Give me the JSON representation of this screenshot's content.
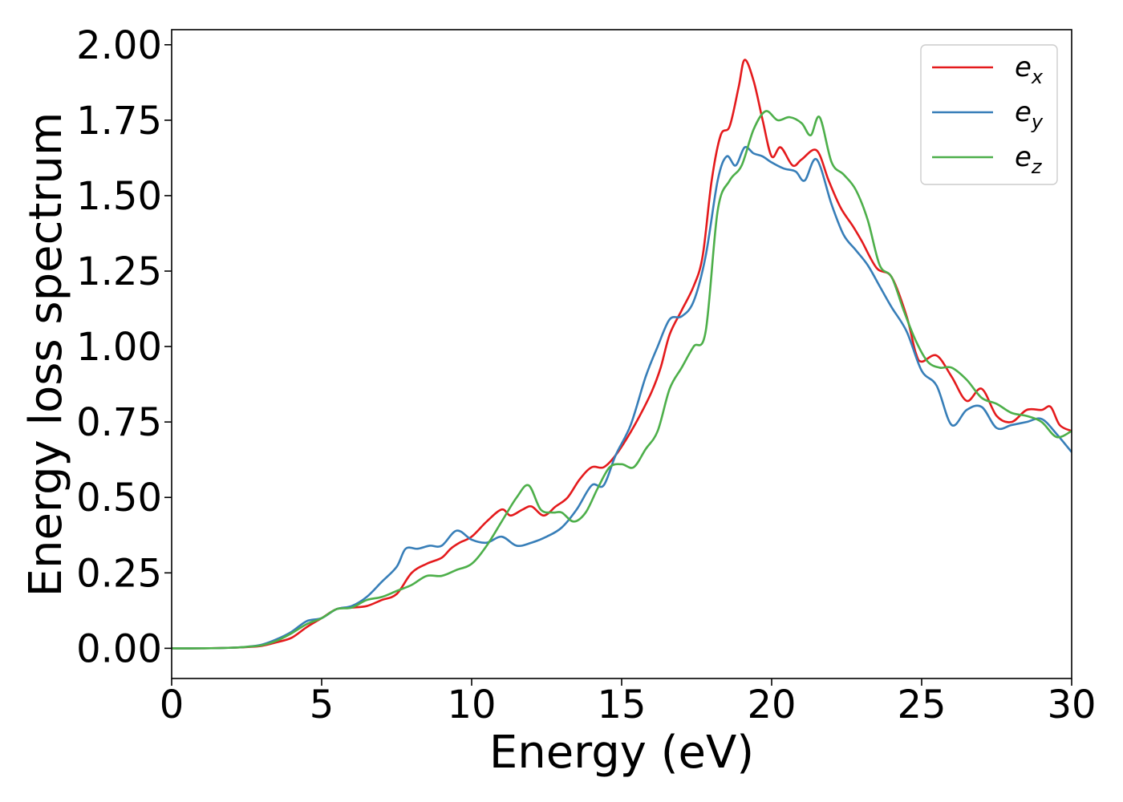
{
  "chart_data": {
    "type": "line",
    "title": "",
    "xlabel": "Energy (eV)",
    "ylabel": "Energy loss spectrum",
    "xlim": [
      0,
      30
    ],
    "ylim": [
      -0.1,
      2.05
    ],
    "xticks": [
      0,
      5,
      10,
      15,
      20,
      25,
      30
    ],
    "xtick_labels": [
      "0",
      "5",
      "10",
      "15",
      "20",
      "25",
      "30"
    ],
    "yticks": [
      0.0,
      0.25,
      0.5,
      0.75,
      1.0,
      1.25,
      1.5,
      1.75,
      2.0
    ],
    "ytick_labels": [
      "0.00",
      "0.25",
      "0.50",
      "0.75",
      "1.00",
      "1.25",
      "1.50",
      "1.75",
      "2.00"
    ],
    "grid": false,
    "legend_position": "top-right",
    "series": [
      {
        "name": "e_x",
        "legend_base": "e",
        "legend_sub": "x",
        "color": "#e41a1c",
        "points": [
          [
            0,
            0
          ],
          [
            1,
            0
          ],
          [
            2,
            0.002
          ],
          [
            2.5,
            0.004
          ],
          [
            3,
            0.008
          ],
          [
            3.5,
            0.02
          ],
          [
            4,
            0.035
          ],
          [
            4.5,
            0.07
          ],
          [
            5,
            0.1
          ],
          [
            5.5,
            0.13
          ],
          [
            6,
            0.135
          ],
          [
            6.5,
            0.14
          ],
          [
            7,
            0.16
          ],
          [
            7.5,
            0.18
          ],
          [
            8,
            0.25
          ],
          [
            8.5,
            0.28
          ],
          [
            9,
            0.3
          ],
          [
            9.3,
            0.33
          ],
          [
            9.6,
            0.35
          ],
          [
            10,
            0.37
          ],
          [
            10.5,
            0.42
          ],
          [
            11,
            0.46
          ],
          [
            11.3,
            0.44
          ],
          [
            11.7,
            0.46
          ],
          [
            12,
            0.47
          ],
          [
            12.4,
            0.44
          ],
          [
            12.8,
            0.47
          ],
          [
            13.2,
            0.5
          ],
          [
            13.6,
            0.56
          ],
          [
            14,
            0.6
          ],
          [
            14.4,
            0.6
          ],
          [
            14.8,
            0.64
          ],
          [
            15.2,
            0.7
          ],
          [
            15.6,
            0.77
          ],
          [
            16,
            0.85
          ],
          [
            16.3,
            0.93
          ],
          [
            16.6,
            1.04
          ],
          [
            17,
            1.12
          ],
          [
            17.4,
            1.2
          ],
          [
            17.7,
            1.3
          ],
          [
            18,
            1.55
          ],
          [
            18.3,
            1.7
          ],
          [
            18.6,
            1.73
          ],
          [
            18.9,
            1.86
          ],
          [
            19.1,
            1.95
          ],
          [
            19.4,
            1.88
          ],
          [
            19.7,
            1.75
          ],
          [
            20,
            1.63
          ],
          [
            20.3,
            1.66
          ],
          [
            20.7,
            1.6
          ],
          [
            21,
            1.62
          ],
          [
            21.5,
            1.65
          ],
          [
            21.9,
            1.55
          ],
          [
            22.3,
            1.46
          ],
          [
            22.7,
            1.4
          ],
          [
            23,
            1.35
          ],
          [
            23.5,
            1.26
          ],
          [
            24,
            1.23
          ],
          [
            24.5,
            1.1
          ],
          [
            24.8,
            0.98
          ],
          [
            25,
            0.95
          ],
          [
            25.5,
            0.97
          ],
          [
            26,
            0.9
          ],
          [
            26.5,
            0.82
          ],
          [
            27,
            0.86
          ],
          [
            27.5,
            0.77
          ],
          [
            28,
            0.75
          ],
          [
            28.5,
            0.79
          ],
          [
            29,
            0.79
          ],
          [
            29.3,
            0.8
          ],
          [
            29.6,
            0.74
          ],
          [
            30,
            0.72
          ]
        ]
      },
      {
        "name": "e_y",
        "legend_base": "e",
        "legend_sub": "y",
        "color": "#377eb8",
        "points": [
          [
            0,
            0
          ],
          [
            1,
            0
          ],
          [
            2,
            0.002
          ],
          [
            2.5,
            0.005
          ],
          [
            3,
            0.012
          ],
          [
            3.5,
            0.03
          ],
          [
            4,
            0.055
          ],
          [
            4.5,
            0.09
          ],
          [
            5,
            0.1
          ],
          [
            5.5,
            0.13
          ],
          [
            6,
            0.14
          ],
          [
            6.5,
            0.17
          ],
          [
            7,
            0.22
          ],
          [
            7.5,
            0.27
          ],
          [
            7.8,
            0.33
          ],
          [
            8.2,
            0.33
          ],
          [
            8.6,
            0.34
          ],
          [
            9,
            0.34
          ],
          [
            9.5,
            0.39
          ],
          [
            10,
            0.36
          ],
          [
            10.5,
            0.35
          ],
          [
            11,
            0.37
          ],
          [
            11.5,
            0.34
          ],
          [
            12,
            0.35
          ],
          [
            12.5,
            0.37
          ],
          [
            13,
            0.4
          ],
          [
            13.5,
            0.46
          ],
          [
            14,
            0.54
          ],
          [
            14.4,
            0.54
          ],
          [
            14.8,
            0.64
          ],
          [
            15.3,
            0.74
          ],
          [
            15.8,
            0.9
          ],
          [
            16.2,
            1.0
          ],
          [
            16.6,
            1.09
          ],
          [
            17,
            1.1
          ],
          [
            17.4,
            1.15
          ],
          [
            17.8,
            1.3
          ],
          [
            18.2,
            1.55
          ],
          [
            18.5,
            1.63
          ],
          [
            18.8,
            1.6
          ],
          [
            19.1,
            1.66
          ],
          [
            19.4,
            1.64
          ],
          [
            19.7,
            1.63
          ],
          [
            20,
            1.61
          ],
          [
            20.4,
            1.59
          ],
          [
            20.8,
            1.58
          ],
          [
            21.1,
            1.55
          ],
          [
            21.5,
            1.62
          ],
          [
            22,
            1.47
          ],
          [
            22.4,
            1.37
          ],
          [
            22.8,
            1.32
          ],
          [
            23.2,
            1.27
          ],
          [
            23.6,
            1.2
          ],
          [
            24,
            1.13
          ],
          [
            24.5,
            1.05
          ],
          [
            25,
            0.92
          ],
          [
            25.5,
            0.87
          ],
          [
            26,
            0.74
          ],
          [
            26.5,
            0.79
          ],
          [
            27,
            0.8
          ],
          [
            27.5,
            0.73
          ],
          [
            28,
            0.74
          ],
          [
            28.5,
            0.75
          ],
          [
            29,
            0.76
          ],
          [
            29.5,
            0.71
          ],
          [
            30,
            0.65
          ]
        ]
      },
      {
        "name": "e_z",
        "legend_base": "e",
        "legend_sub": "z",
        "color": "#4daf4a",
        "points": [
          [
            0,
            0
          ],
          [
            1,
            0
          ],
          [
            2,
            0.002
          ],
          [
            2.5,
            0.005
          ],
          [
            3,
            0.01
          ],
          [
            3.5,
            0.025
          ],
          [
            4,
            0.05
          ],
          [
            4.5,
            0.08
          ],
          [
            5,
            0.1
          ],
          [
            5.5,
            0.13
          ],
          [
            6,
            0.135
          ],
          [
            6.5,
            0.16
          ],
          [
            7,
            0.17
          ],
          [
            7.5,
            0.19
          ],
          [
            8,
            0.21
          ],
          [
            8.5,
            0.24
          ],
          [
            9,
            0.24
          ],
          [
            9.5,
            0.26
          ],
          [
            10,
            0.28
          ],
          [
            10.5,
            0.34
          ],
          [
            11,
            0.42
          ],
          [
            11.5,
            0.5
          ],
          [
            11.9,
            0.54
          ],
          [
            12.3,
            0.46
          ],
          [
            12.7,
            0.45
          ],
          [
            13,
            0.45
          ],
          [
            13.4,
            0.42
          ],
          [
            13.8,
            0.45
          ],
          [
            14.2,
            0.53
          ],
          [
            14.6,
            0.6
          ],
          [
            15,
            0.61
          ],
          [
            15.4,
            0.6
          ],
          [
            15.8,
            0.66
          ],
          [
            16.2,
            0.72
          ],
          [
            16.6,
            0.86
          ],
          [
            17,
            0.93
          ],
          [
            17.4,
            1.0
          ],
          [
            17.8,
            1.05
          ],
          [
            18.2,
            1.45
          ],
          [
            18.6,
            1.55
          ],
          [
            19,
            1.6
          ],
          [
            19.4,
            1.72
          ],
          [
            19.8,
            1.78
          ],
          [
            20.2,
            1.75
          ],
          [
            20.6,
            1.76
          ],
          [
            21,
            1.74
          ],
          [
            21.3,
            1.7
          ],
          [
            21.6,
            1.76
          ],
          [
            22,
            1.61
          ],
          [
            22.4,
            1.57
          ],
          [
            22.8,
            1.52
          ],
          [
            23.2,
            1.42
          ],
          [
            23.6,
            1.27
          ],
          [
            24,
            1.23
          ],
          [
            24.4,
            1.12
          ],
          [
            24.8,
            1.02
          ],
          [
            25.2,
            0.95
          ],
          [
            25.6,
            0.93
          ],
          [
            26,
            0.93
          ],
          [
            26.5,
            0.89
          ],
          [
            27,
            0.83
          ],
          [
            27.5,
            0.81
          ],
          [
            28,
            0.78
          ],
          [
            28.5,
            0.77
          ],
          [
            29,
            0.75
          ],
          [
            29.5,
            0.7
          ],
          [
            30,
            0.72
          ]
        ]
      }
    ]
  }
}
